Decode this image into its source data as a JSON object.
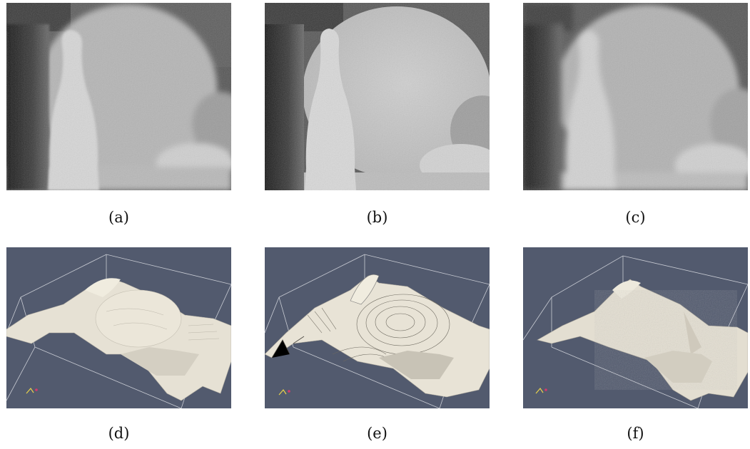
{
  "figure": {
    "captions": [
      "(a)",
      "(b)",
      "(c)",
      "(d)",
      "(e)",
      "(f)"
    ]
  },
  "colors": {
    "depth_background": "#4e4e4e",
    "render_background": "#525a6e",
    "surface": "#e8e3d6",
    "bounding_box": "#c9ccd4"
  }
}
